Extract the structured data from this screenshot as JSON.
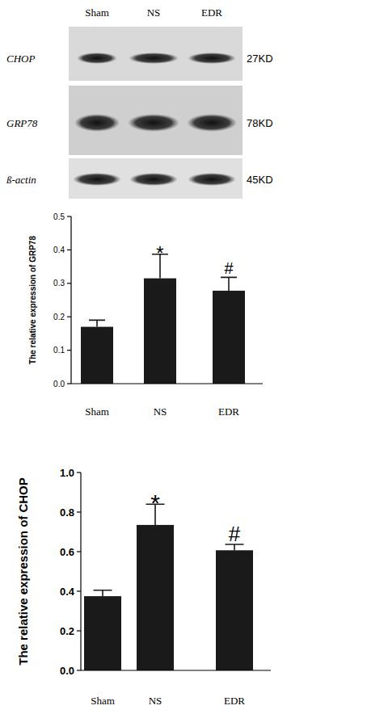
{
  "blot": {
    "lanes": [
      "Sham",
      "NS",
      "EDR"
    ],
    "rows": [
      {
        "protein": "CHOP",
        "size": "27KD"
      },
      {
        "protein": "GRP78",
        "size": "78KD"
      },
      {
        "protein": "ß-actin",
        "size": "45KD"
      }
    ]
  },
  "chart_data": [
    {
      "type": "bar",
      "y_label": "The relative expression of GRP78",
      "categories": [
        "Sham",
        "NS",
        "EDR"
      ],
      "values": [
        0.17,
        0.315,
        0.278
      ],
      "errors": [
        0.02,
        0.072,
        0.04
      ],
      "color": "#1a1a1a",
      "ylim": [
        0,
        0.5
      ],
      "yticks": [
        {
          "value": 0,
          "label": "0.0"
        },
        0.1,
        0.2,
        0.3,
        0.4,
        0.5
      ],
      "annotations": [
        {
          "text": "*",
          "category": "NS"
        },
        {
          "text": "#",
          "category": "EDR"
        }
      ]
    },
    {
      "type": "bar",
      "y_label": "The relative expression of CHOP",
      "categories": [
        "Sham",
        "NS",
        "EDR"
      ],
      "values": [
        0.375,
        0.735,
        0.607
      ],
      "errors": [
        0.03,
        0.105,
        0.03
      ],
      "color": "#1a1a1a",
      "ylim": [
        0,
        1
      ],
      "yticks": [
        {
          "value": 0,
          "label": "0.0"
        },
        0.2,
        0.4,
        0.6,
        0.8,
        {
          "value": 1,
          "label": "1.0"
        }
      ],
      "annotations": [
        {
          "text": "*",
          "category": "NS"
        },
        {
          "text": "#",
          "category": "EDR"
        }
      ]
    }
  ]
}
